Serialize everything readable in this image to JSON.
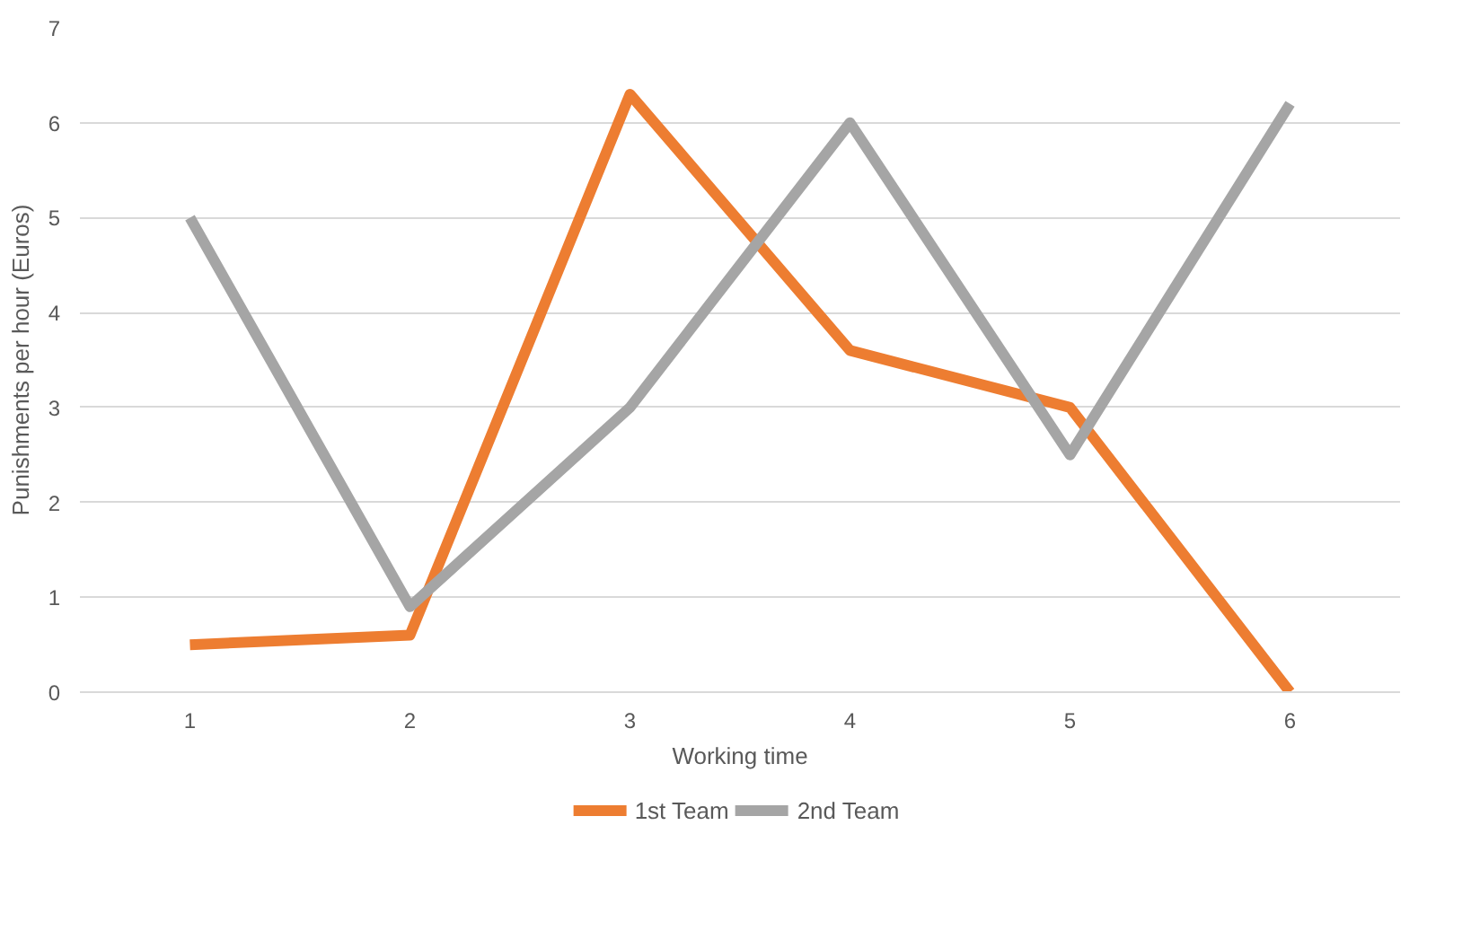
{
  "chart_data": {
    "type": "line",
    "xlabel": "Working time",
    "ylabel": "Punishments per hour (Euros)",
    "categories": [
      "1",
      "2",
      "3",
      "4",
      "5",
      "6"
    ],
    "series": [
      {
        "name": "1st Team",
        "color": "#ed7d31",
        "values": [
          0.5,
          0.6,
          6.3,
          3.6,
          3.0,
          0
        ]
      },
      {
        "name": "2nd Team",
        "color": "#a5a5a5",
        "values": [
          5.0,
          0.9,
          3.0,
          6.0,
          2.5,
          6.2
        ]
      }
    ],
    "ylim": [
      0,
      7
    ],
    "yticks": [
      0,
      1,
      2,
      3,
      4,
      5,
      6,
      7
    ],
    "grid": "y",
    "legend": "bottom",
    "marker": "none",
    "line_style": "solid"
  }
}
